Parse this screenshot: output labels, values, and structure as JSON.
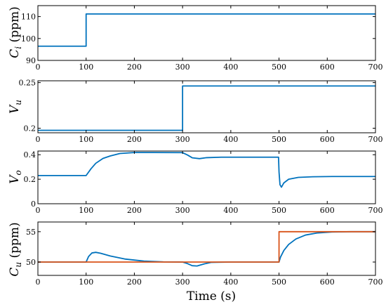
{
  "chart_data": [
    {
      "type": "line",
      "ylabel": "Ci (ppm)",
      "xlim": [
        0,
        700
      ],
      "ylim": [
        90,
        115
      ],
      "xticks": [
        "0",
        "100",
        "200",
        "300",
        "400",
        "500",
        "600",
        "700"
      ],
      "yticks": [
        90,
        100,
        110
      ],
      "series": [
        {
          "color": "#0072BD",
          "x": [
            0,
            100,
            100,
            700
          ],
          "y": [
            96.5,
            96.5,
            111.2,
            111.2
          ]
        }
      ]
    },
    {
      "type": "line",
      "ylabel": "Vu",
      "xlim": [
        0,
        700
      ],
      "ylim": [
        0.195,
        0.252
      ],
      "xticks": [
        "0",
        "100",
        "200",
        "300",
        "400",
        "500",
        "600",
        "700"
      ],
      "yticks": [
        0.2,
        0.25
      ],
      "series": [
        {
          "color": "#0072BD",
          "x": [
            0,
            300,
            300,
            700
          ],
          "y": [
            0.1977,
            0.1977,
            0.2463,
            0.2463
          ]
        }
      ]
    },
    {
      "type": "line",
      "ylabel": "Vo",
      "xlim": [
        0,
        700
      ],
      "ylim": [
        0,
        0.43
      ],
      "xticks": [
        "0",
        "100",
        "200",
        "300",
        "400",
        "500",
        "600",
        "700"
      ],
      "yticks": [
        0,
        0.2,
        0.4
      ],
      "series": [
        {
          "color": "#0072BD",
          "x": [
            0,
            100,
            110,
            120,
            135,
            150,
            170,
            200,
            240,
            300,
            310,
            320,
            335,
            350,
            380,
            420,
            460,
            499,
            500,
            502,
            505,
            510,
            520,
            540,
            570,
            610,
            650,
            700
          ],
          "y": [
            0.23,
            0.23,
            0.285,
            0.33,
            0.37,
            0.39,
            0.41,
            0.418,
            0.418,
            0.417,
            0.398,
            0.375,
            0.368,
            0.376,
            0.38,
            0.38,
            0.38,
            0.38,
            0.26,
            0.155,
            0.135,
            0.17,
            0.2,
            0.215,
            0.22,
            0.222,
            0.222,
            0.222
          ]
        }
      ]
    },
    {
      "type": "line",
      "ylabel": "Cu (ppm)",
      "xlim": [
        0,
        700
      ],
      "ylim": [
        47.8,
        56.6
      ],
      "xticks": [
        "0",
        "100",
        "200",
        "300",
        "400",
        "500",
        "600",
        "700"
      ],
      "yticks": [
        50,
        55
      ],
      "series": [
        {
          "color": "#0072BD",
          "x": [
            0,
            100,
            105,
            112,
            120,
            130,
            150,
            180,
            220,
            260,
            300,
            310,
            320,
            330,
            345,
            360,
            400,
            450,
            500,
            503,
            510,
            520,
            535,
            555,
            580,
            610,
            650,
            700
          ],
          "y": [
            50,
            50,
            50.9,
            51.5,
            51.6,
            51.45,
            51,
            50.5,
            50.15,
            50.03,
            50,
            49.75,
            49.4,
            49.35,
            49.7,
            49.95,
            50,
            50,
            50,
            50.8,
            51.9,
            52.9,
            53.8,
            54.45,
            54.8,
            54.95,
            55,
            55
          ]
        },
        {
          "color": "#D95319",
          "x": [
            0,
            500,
            500,
            700
          ],
          "y": [
            50,
            50,
            55,
            55
          ]
        }
      ]
    }
  ],
  "xlabel": "Time (s)"
}
